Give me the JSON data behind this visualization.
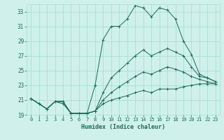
{
  "title": "",
  "xlabel": "Humidex (Indice chaleur)",
  "background_color": "#cff0eb",
  "grid_color": "#aaddcc",
  "line_color": "#1a6b5a",
  "xlim": [
    -0.5,
    23.5
  ],
  "ylim": [
    19,
    34
  ],
  "yticks": [
    19,
    21,
    23,
    25,
    27,
    29,
    31,
    33
  ],
  "xticks": [
    0,
    1,
    2,
    3,
    4,
    5,
    6,
    7,
    8,
    9,
    10,
    11,
    12,
    13,
    14,
    15,
    16,
    17,
    18,
    19,
    20,
    21,
    22,
    23
  ],
  "series": [
    {
      "x": [
        0,
        1,
        2,
        3,
        4,
        5,
        6,
        7,
        8,
        9,
        10,
        11,
        12,
        13,
        14,
        15,
        16,
        17,
        18,
        19,
        20,
        21,
        22,
        23
      ],
      "y": [
        21.2,
        20.5,
        19.8,
        20.8,
        20.8,
        19.2,
        19.2,
        19.2,
        23.0,
        29.2,
        31.0,
        31.0,
        32.0,
        33.8,
        33.5,
        32.3,
        33.5,
        33.2,
        32.0,
        29.0,
        27.2,
        24.5,
        24.0,
        23.5
      ]
    },
    {
      "x": [
        0,
        1,
        2,
        3,
        4,
        5,
        6,
        7,
        8,
        9,
        10,
        11,
        12,
        13,
        14,
        15,
        16,
        17,
        18,
        19,
        20,
        21,
        22,
        23
      ],
      "y": [
        21.2,
        20.5,
        19.8,
        20.8,
        20.8,
        19.2,
        19.2,
        19.2,
        19.5,
        22.0,
        24.0,
        25.0,
        26.0,
        27.0,
        27.8,
        27.0,
        27.5,
        28.0,
        27.5,
        27.0,
        25.5,
        24.2,
        24.0,
        23.5
      ]
    },
    {
      "x": [
        0,
        1,
        2,
        3,
        4,
        5,
        6,
        7,
        8,
        9,
        10,
        11,
        12,
        13,
        14,
        15,
        16,
        17,
        18,
        19,
        20,
        21,
        22,
        23
      ],
      "y": [
        21.2,
        20.5,
        19.8,
        20.8,
        20.8,
        19.2,
        19.2,
        19.2,
        19.5,
        21.0,
        22.0,
        22.8,
        23.5,
        24.2,
        24.8,
        24.5,
        25.0,
        25.5,
        25.2,
        24.8,
        24.2,
        23.8,
        23.5,
        23.2
      ]
    },
    {
      "x": [
        0,
        1,
        2,
        3,
        4,
        5,
        6,
        7,
        8,
        9,
        10,
        11,
        12,
        13,
        14,
        15,
        16,
        17,
        18,
        19,
        20,
        21,
        22,
        23
      ],
      "y": [
        21.2,
        20.5,
        19.8,
        20.8,
        20.5,
        19.2,
        19.2,
        19.2,
        19.5,
        20.5,
        21.0,
        21.3,
        21.6,
        22.0,
        22.3,
        22.0,
        22.5,
        22.5,
        22.5,
        22.8,
        23.0,
        23.2,
        23.2,
        23.2
      ]
    }
  ]
}
